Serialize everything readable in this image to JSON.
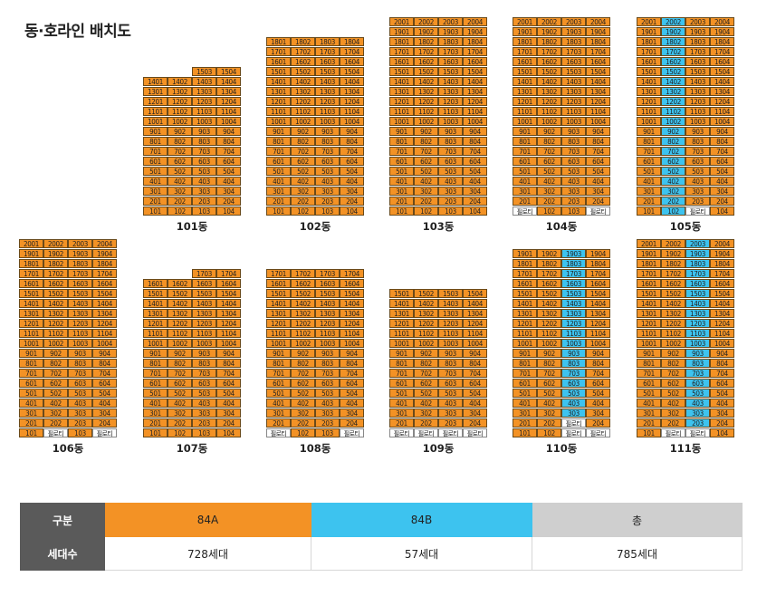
{
  "title": "동·호라인 배치도",
  "pilotis_label": "필로티",
  "colors": {
    "type_84A": "#f39225",
    "type_84B": "#3dc3ef",
    "total": "#cfcfcf",
    "header": "#5a5a5a"
  },
  "buildings": [
    {
      "name": "101동",
      "top_floor": 15,
      "bottom_floor": 1,
      "partial_lines": {
        "1": 14,
        "2": 14
      },
      "pilotis": [],
      "b_line": null
    },
    {
      "name": "102동",
      "top_floor": 18,
      "bottom_floor": 1,
      "partial_lines": {},
      "pilotis": [],
      "b_line": null
    },
    {
      "name": "103동",
      "top_floor": 20,
      "bottom_floor": 1,
      "partial_lines": {},
      "pilotis": [],
      "b_line": null
    },
    {
      "name": "104동",
      "top_floor": 20,
      "bottom_floor": 1,
      "partial_lines": {},
      "pilotis": [
        [
          1,
          1
        ],
        [
          1,
          4
        ]
      ],
      "b_line": null
    },
    {
      "name": "105동",
      "top_floor": 20,
      "bottom_floor": 1,
      "partial_lines": {},
      "pilotis": [
        [
          1,
          3
        ]
      ],
      "b_line": 2
    },
    {
      "name": "106동",
      "top_floor": 20,
      "bottom_floor": 1,
      "partial_lines": {},
      "pilotis": [
        [
          1,
          2
        ],
        [
          1,
          4
        ]
      ],
      "b_line": null
    },
    {
      "name": "107동",
      "top_floor": 17,
      "bottom_floor": 1,
      "partial_lines": {
        "1": 16,
        "2": 16
      },
      "pilotis": [],
      "b_line": null
    },
    {
      "name": "108동",
      "top_floor": 17,
      "bottom_floor": 1,
      "partial_lines": {},
      "pilotis": [
        [
          1,
          1
        ],
        [
          1,
          4
        ]
      ],
      "b_line": null
    },
    {
      "name": "109동",
      "top_floor": 15,
      "bottom_floor": 1,
      "partial_lines": {},
      "pilotis": [
        [
          1,
          1
        ],
        [
          1,
          2
        ],
        [
          1,
          3
        ],
        [
          1,
          4
        ]
      ],
      "b_line": null
    },
    {
      "name": "110동",
      "top_floor": 19,
      "bottom_floor": 1,
      "partial_lines": {},
      "pilotis": [
        [
          2,
          3
        ],
        [
          1,
          3
        ],
        [
          1,
          4
        ]
      ],
      "b_line": 3
    },
    {
      "name": "111동",
      "top_floor": 20,
      "bottom_floor": 1,
      "partial_lines": {},
      "pilotis": [
        [
          1,
          2
        ],
        [
          1,
          3
        ]
      ],
      "b_line": 3
    }
  ],
  "legend": {
    "header_type": "구분",
    "header_units": "세대수",
    "type_a": "84A",
    "type_b": "84B",
    "total_label": "총",
    "units_a": "728세대",
    "units_b": "57세대",
    "units_total": "785세대"
  }
}
